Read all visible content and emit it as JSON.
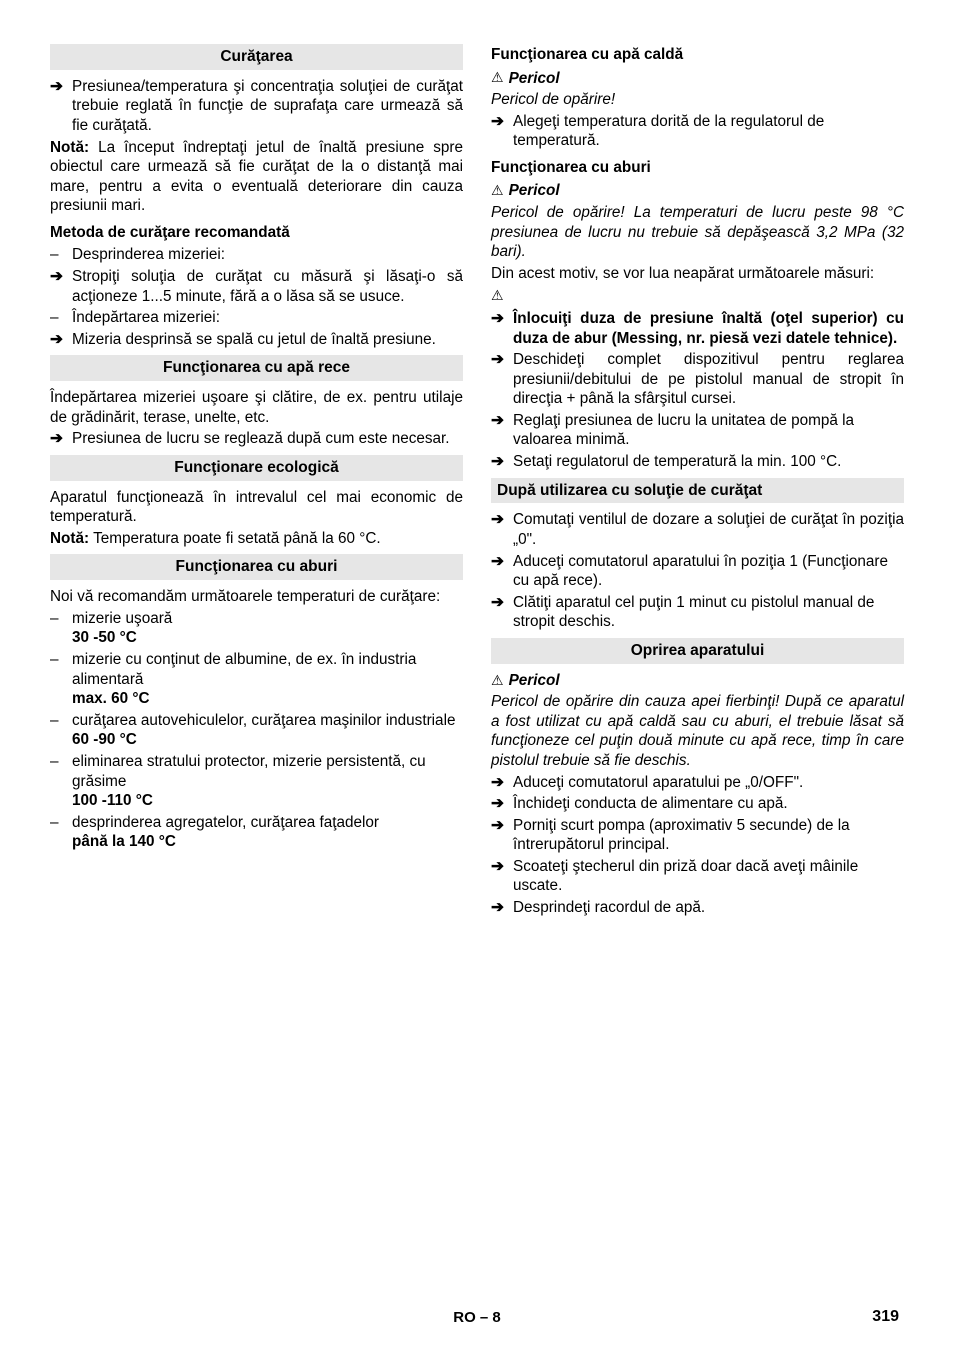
{
  "left": {
    "h_curatarea": "Curăţarea",
    "i1": "Presiunea/temperatura şi concentraţia soluţiei de curăţat trebuie reglată în funcţie de suprafaţa care urmează să fie curăţată.",
    "nota_label": "Notă:",
    "nota_body": " La început îndreptaţi jetul de înaltă presiune spre obiectul care urmează să fie curăţat de la o distanţă mai mare, pentru a evita o eventuală deteriorare din cauza presiunii mari.",
    "h_metoda": "Metoda de curăţare recomandată",
    "d1": "Desprinderea mizeriei:",
    "a1": "Stropiţi soluţia de curăţat cu măsură şi lăsaţi-o să acţioneze 1...5 minute, fără a o lăsa să se usuce.",
    "d2": "Îndepărtarea mizeriei:",
    "a2": "Mizeria desprinsă se spală cu jetul de înaltă presiune.",
    "h_aparece": "Funcţionarea cu apă rece",
    "rece_p1": "Îndepărtarea mizeriei uşoare şi clătire, de ex. pentru utilaje de grădinărit, terase, unelte, etc.",
    "rece_a1": "Presiunea de lucru se reglează după cum este necesar.",
    "h_eco": "Funcţionare ecologică",
    "eco_p1": "Aparatul funcţionează în intrevalul cel mai economic de temperatură.",
    "eco_nota_label": "Notă:",
    "eco_nota_body": " Temperatura poate fi setată până la 60 °C.",
    "h_aburi": "Funcţionarea cu aburi",
    "aburi_p1": "Noi vă recomandăm următoarele temperaturi de curăţare:",
    "ab_d1": "mizerie uşoară",
    "ab_d1_b": "30 -50 °C",
    "ab_d2": "mizerie cu conţinut de albumine, de ex. în industria alimentară",
    "ab_d2_b": "max. 60 °C",
    "ab_d3": "curăţarea autovehiculelor, curăţarea maşinilor industriale",
    "ab_d3_b": "60 -90 °C",
    "ab_d4": "eliminarea stratului protector, mizerie persistentă, cu grăsime",
    "ab_d4_b": "100 -110 °C",
    "ab_d5": "desprinderea agregatelor, curăţarea faţadelor",
    "ab_d5_b": "până la 140 °C"
  },
  "right": {
    "h_calda": "Funcţionarea cu apă caldă",
    "pericol": "Pericol",
    "calda_p1": "Pericol de opărire!",
    "calda_a1": "Alegeţi temperatura dorită de la regulatorul de temperatură.",
    "h_aburi2": "Funcţionarea cu aburi",
    "aburi2_p1": "Pericol de opărire! La temperaturi de lucru peste 98 °C presiunea de lucru nu trebuie să depăşească 3,2 MPa (32 bari).",
    "aburi2_p2": "Din acest motiv, se vor lua neapărat următoarele măsuri:",
    "aburi2_a1": "Înlocuiţi duza de presiune înaltă (oţel superior) cu duza de abur (Messing, nr. piesă vezi datele tehnice).",
    "aburi2_a2": "Deschideţi complet dispozitivul pentru reglarea presiunii/debitului de pe pistolul manual de stropit în direcţia + până la sfârşitul cursei.",
    "aburi2_a3": "Reglaţi presiunea de lucru la unitatea de pompă la valoarea minimă.",
    "aburi2_a4": "Setaţi regulatorul de temperatură la min. 100 °C.",
    "h_dupa": "După utilizarea cu soluţie de curăţat",
    "dupa_a1": "Comutaţi ventilul de dozare a soluţiei de curăţat în poziţia „0\".",
    "dupa_a2": "Aduceţi comutatorul aparatului în poziţia 1 (Funcţionare cu apă rece).",
    "dupa_a3": "Clătiţi aparatul cel puţin 1 minut cu pistolul manual de stropit deschis.",
    "h_oprirea": "Oprirea aparatului",
    "op_p1": "Pericol de opărire din cauza apei fierbinţi! După ce aparatul a fost utilizat cu apă caldă sau cu aburi, el trebuie lăsat să funcţioneze cel puţin două minute cu apă rece, timp în care pistolul trebuie să fie deschis.",
    "op_a1": "Aduceţi comutatorul aparatului pe „0/OFF\".",
    "op_a2": "Închideţi conducta de alimentare cu apă.",
    "op_a3": "Porniţi scurt pompa (aproximativ 5 secunde) de la întrerupătorul principal.",
    "op_a4": "Scoateţi ştecherul din priză doar dacă aveţi mâinile uscate.",
    "op_a5": "Desprindeţi racordul de apă."
  },
  "footer": {
    "center": "RO – 8",
    "page": "319"
  }
}
